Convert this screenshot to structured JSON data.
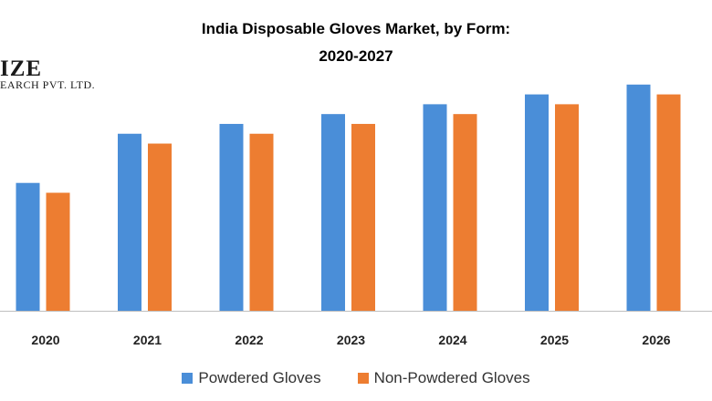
{
  "chart_data": {
    "type": "bar",
    "title_lines": [
      "India Disposable Gloves Market, by Form:",
      "2020-2027"
    ],
    "categories": [
      "2020",
      "2021",
      "2022",
      "2023",
      "2024",
      "2025",
      "2026"
    ],
    "series": [
      {
        "name": "Powdered Gloves",
        "color": "#4a8ed8",
        "values": [
          13,
          18,
          19,
          20,
          21,
          22,
          23
        ]
      },
      {
        "name": "Non-Powdered Gloves",
        "color": "#ed7d31",
        "values": [
          12,
          17,
          18,
          19,
          20,
          21,
          22
        ]
      }
    ],
    "xlabel": "",
    "ylabel": "",
    "ylim": [
      0,
      24
    ],
    "grid": false,
    "legend_position": "bottom"
  },
  "watermark": {
    "main": "IZE",
    "sub": "EARCH PVT. LTD."
  }
}
